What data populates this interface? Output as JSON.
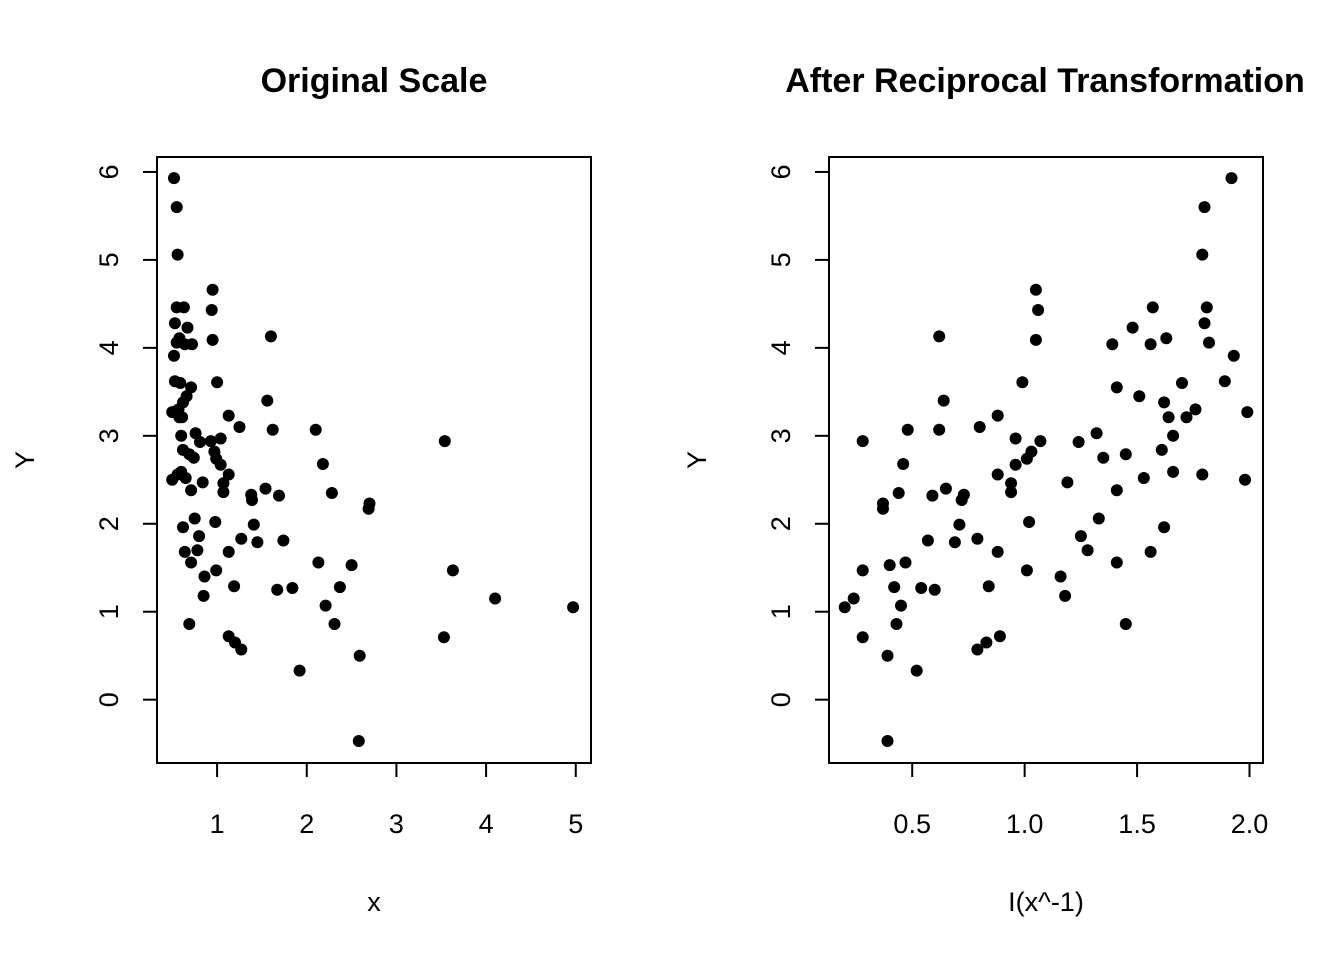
{
  "chart_data": [
    {
      "type": "scatter",
      "title": "Original Scale",
      "xlabel": "x",
      "ylabel": "Y",
      "xlim": [
        0.33,
        5.17
      ],
      "ylim": [
        -0.72,
        6.17
      ],
      "xticks": [
        1,
        2,
        3,
        4,
        5
      ],
      "yticks": [
        0,
        1,
        2,
        3,
        4,
        5,
        6
      ],
      "xtick_labels": [
        "1",
        "2",
        "3",
        "4",
        "5"
      ],
      "ytick_labels": [
        "0",
        "1",
        "2",
        "3",
        "4",
        "5",
        "6"
      ],
      "grid": false,
      "color": "#000000",
      "points": [
        [
          0.52,
          5.93
        ],
        [
          0.55,
          5.6
        ],
        [
          0.56,
          5.06
        ],
        [
          0.95,
          4.66
        ],
        [
          0.55,
          4.46
        ],
        [
          0.63,
          4.46
        ],
        [
          0.94,
          4.43
        ],
        [
          0.53,
          4.28
        ],
        [
          0.67,
          4.23
        ],
        [
          1.6,
          4.13
        ],
        [
          0.58,
          4.11
        ],
        [
          0.55,
          4.06
        ],
        [
          0.72,
          4.04
        ],
        [
          0.95,
          4.09
        ],
        [
          0.64,
          4.04
        ],
        [
          0.52,
          3.91
        ],
        [
          0.53,
          3.62
        ],
        [
          0.59,
          3.6
        ],
        [
          1.0,
          3.61
        ],
        [
          0.71,
          3.55
        ],
        [
          0.66,
          3.45
        ],
        [
          0.62,
          3.38
        ],
        [
          1.56,
          3.4
        ],
        [
          0.57,
          3.3
        ],
        [
          0.5,
          3.27
        ],
        [
          0.58,
          3.21
        ],
        [
          0.61,
          3.21
        ],
        [
          1.13,
          3.23
        ],
        [
          1.25,
          3.1
        ],
        [
          1.62,
          3.07
        ],
        [
          2.1,
          3.07
        ],
        [
          0.6,
          3.0
        ],
        [
          0.76,
          3.03
        ],
        [
          0.81,
          2.93
        ],
        [
          0.93,
          2.94
        ],
        [
          1.04,
          2.97
        ],
        [
          3.54,
          2.94
        ],
        [
          0.62,
          2.84
        ],
        [
          0.97,
          2.82
        ],
        [
          0.69,
          2.79
        ],
        [
          0.74,
          2.75
        ],
        [
          0.99,
          2.74
        ],
        [
          1.04,
          2.67
        ],
        [
          2.18,
          2.68
        ],
        [
          0.6,
          2.59
        ],
        [
          0.56,
          2.56
        ],
        [
          0.65,
          2.52
        ],
        [
          1.13,
          2.56
        ],
        [
          0.5,
          2.5
        ],
        [
          0.84,
          2.47
        ],
        [
          1.07,
          2.46
        ],
        [
          0.71,
          2.38
        ],
        [
          1.07,
          2.36
        ],
        [
          1.54,
          2.4
        ],
        [
          1.38,
          2.33
        ],
        [
          1.69,
          2.32
        ],
        [
          2.28,
          2.35
        ],
        [
          1.39,
          2.27
        ],
        [
          2.7,
          2.23
        ],
        [
          2.69,
          2.17
        ],
        [
          0.75,
          2.06
        ],
        [
          0.98,
          2.02
        ],
        [
          1.41,
          1.99
        ],
        [
          0.62,
          1.96
        ],
        [
          0.8,
          1.86
        ],
        [
          1.27,
          1.83
        ],
        [
          1.74,
          1.81
        ],
        [
          1.45,
          1.79
        ],
        [
          0.78,
          1.7
        ],
        [
          0.64,
          1.68
        ],
        [
          1.13,
          1.68
        ],
        [
          0.71,
          1.56
        ],
        [
          2.13,
          1.56
        ],
        [
          2.5,
          1.53
        ],
        [
          0.99,
          1.47
        ],
        [
          3.63,
          1.47
        ],
        [
          0.86,
          1.4
        ],
        [
          1.19,
          1.29
        ],
        [
          2.37,
          1.28
        ],
        [
          1.67,
          1.25
        ],
        [
          1.84,
          1.27
        ],
        [
          0.85,
          1.18
        ],
        [
          4.1,
          1.15
        ],
        [
          2.21,
          1.07
        ],
        [
          4.97,
          1.05
        ],
        [
          0.69,
          0.86
        ],
        [
          2.31,
          0.86
        ],
        [
          1.13,
          0.72
        ],
        [
          3.53,
          0.71
        ],
        [
          1.2,
          0.65
        ],
        [
          1.27,
          0.57
        ],
        [
          2.59,
          0.5
        ],
        [
          1.92,
          0.33
        ],
        [
          2.58,
          -0.47
        ]
      ]
    },
    {
      "type": "scatter",
      "title": "After Reciprocal Transformation",
      "xlabel": "I(x^-1)",
      "ylabel": "Y",
      "xlim": [
        0.13,
        2.06
      ],
      "ylim": [
        -0.72,
        6.17
      ],
      "xticks": [
        0.5,
        1.0,
        1.5,
        2.0
      ],
      "yticks": [
        0,
        1,
        2,
        3,
        4,
        5,
        6
      ],
      "xtick_labels": [
        "0.5",
        "1.0",
        "1.5",
        "2.0"
      ],
      "ytick_labels": [
        "0",
        "1",
        "2",
        "3",
        "4",
        "5",
        "6"
      ],
      "grid": false,
      "color": "#000000",
      "points": [
        [
          1.92,
          5.93
        ],
        [
          1.8,
          5.6
        ],
        [
          1.79,
          5.06
        ],
        [
          1.05,
          4.66
        ],
        [
          1.81,
          4.46
        ],
        [
          1.57,
          4.46
        ],
        [
          1.06,
          4.43
        ],
        [
          1.8,
          4.28
        ],
        [
          1.48,
          4.23
        ],
        [
          0.62,
          4.13
        ],
        [
          1.63,
          4.11
        ],
        [
          1.82,
          4.06
        ],
        [
          1.39,
          4.04
        ],
        [
          1.05,
          4.09
        ],
        [
          1.56,
          4.04
        ],
        [
          1.93,
          3.91
        ],
        [
          1.89,
          3.62
        ],
        [
          1.7,
          3.6
        ],
        [
          0.99,
          3.61
        ],
        [
          1.41,
          3.55
        ],
        [
          1.51,
          3.45
        ],
        [
          1.62,
          3.38
        ],
        [
          0.64,
          3.4
        ],
        [
          1.76,
          3.3
        ],
        [
          1.99,
          3.27
        ],
        [
          1.72,
          3.21
        ],
        [
          1.64,
          3.21
        ],
        [
          0.88,
          3.23
        ],
        [
          0.8,
          3.1
        ],
        [
          0.62,
          3.07
        ],
        [
          0.48,
          3.07
        ],
        [
          1.66,
          3.0
        ],
        [
          1.32,
          3.03
        ],
        [
          1.24,
          2.93
        ],
        [
          1.07,
          2.94
        ],
        [
          0.96,
          2.97
        ],
        [
          0.28,
          2.94
        ],
        [
          1.61,
          2.84
        ],
        [
          1.03,
          2.82
        ],
        [
          1.45,
          2.79
        ],
        [
          1.35,
          2.75
        ],
        [
          1.01,
          2.74
        ],
        [
          0.96,
          2.67
        ],
        [
          0.46,
          2.68
        ],
        [
          1.66,
          2.59
        ],
        [
          1.79,
          2.56
        ],
        [
          1.53,
          2.52
        ],
        [
          0.88,
          2.56
        ],
        [
          1.98,
          2.5
        ],
        [
          1.19,
          2.47
        ],
        [
          0.94,
          2.46
        ],
        [
          1.41,
          2.38
        ],
        [
          0.94,
          2.36
        ],
        [
          0.65,
          2.4
        ],
        [
          0.73,
          2.33
        ],
        [
          0.59,
          2.32
        ],
        [
          0.44,
          2.35
        ],
        [
          0.72,
          2.27
        ],
        [
          0.37,
          2.23
        ],
        [
          0.37,
          2.17
        ],
        [
          1.33,
          2.06
        ],
        [
          1.02,
          2.02
        ],
        [
          0.71,
          1.99
        ],
        [
          1.62,
          1.96
        ],
        [
          1.25,
          1.86
        ],
        [
          0.79,
          1.83
        ],
        [
          0.57,
          1.81
        ],
        [
          0.69,
          1.79
        ],
        [
          1.28,
          1.7
        ],
        [
          1.56,
          1.68
        ],
        [
          0.88,
          1.68
        ],
        [
          1.41,
          1.56
        ],
        [
          0.47,
          1.56
        ],
        [
          0.4,
          1.53
        ],
        [
          1.01,
          1.47
        ],
        [
          0.28,
          1.47
        ],
        [
          1.16,
          1.4
        ],
        [
          0.84,
          1.29
        ],
        [
          0.42,
          1.28
        ],
        [
          0.6,
          1.25
        ],
        [
          0.54,
          1.27
        ],
        [
          1.18,
          1.18
        ],
        [
          0.24,
          1.15
        ],
        [
          0.45,
          1.07
        ],
        [
          0.2,
          1.05
        ],
        [
          1.45,
          0.86
        ],
        [
          0.43,
          0.86
        ],
        [
          0.89,
          0.72
        ],
        [
          0.28,
          0.71
        ],
        [
          0.83,
          0.65
        ],
        [
          0.79,
          0.57
        ],
        [
          0.39,
          0.5
        ],
        [
          0.52,
          0.33
        ],
        [
          0.39,
          -0.47
        ]
      ]
    }
  ]
}
